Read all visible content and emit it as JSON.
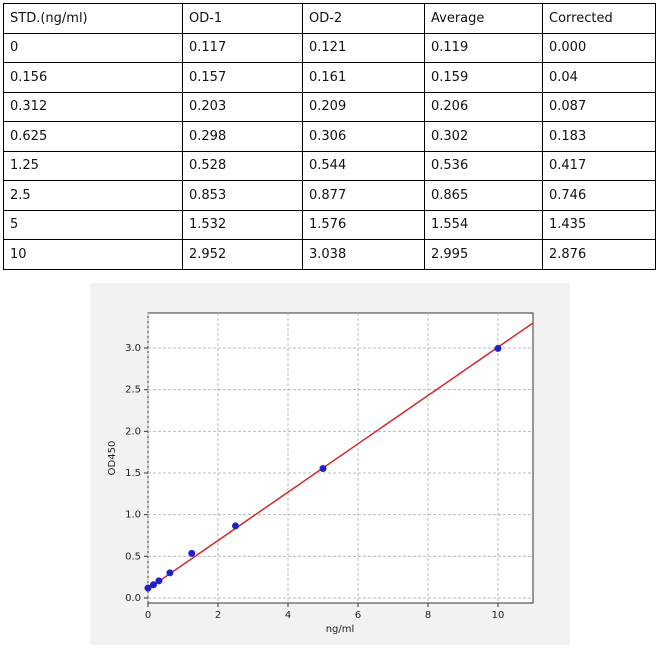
{
  "table": {
    "header": [
      "STD.(ng/ml)",
      "OD-1",
      "OD-2",
      "Average",
      "Corrected"
    ],
    "rows": [
      [
        "0",
        "0.117",
        "0.121",
        "0.119",
        "0.000"
      ],
      [
        "0.156",
        "0.157",
        "0.161",
        "0.159",
        "0.04"
      ],
      [
        "0.312",
        "0.203",
        "0.209",
        "0.206",
        "0.087"
      ],
      [
        "0.625",
        "0.298",
        "0.306",
        "0.302",
        "0.183"
      ],
      [
        "1.25",
        "0.528",
        "0.544",
        "0.536",
        "0.417"
      ],
      [
        "2.5",
        "0.853",
        "0.877",
        "0.865",
        "0.746"
      ],
      [
        "5",
        "1.532",
        "1.576",
        "1.554",
        "1.435"
      ],
      [
        "10",
        "2.952",
        "3.038",
        "2.995",
        "2.876"
      ]
    ]
  },
  "chart_data": {
    "type": "scatter",
    "x_label": "ng/ml",
    "y_label": "OD450",
    "series": [
      {
        "type": "scatter",
        "color": "#1f1fcc",
        "x": [
          0,
          0.156,
          0.312,
          0.625,
          1.25,
          2.5,
          5,
          10
        ],
        "values": [
          0.119,
          0.159,
          0.206,
          0.302,
          0.536,
          0.865,
          1.554,
          2.995
        ]
      },
      {
        "type": "line",
        "color": "#d62728",
        "x": [
          0,
          11
        ],
        "values": [
          0.11,
          3.3
        ]
      }
    ],
    "xlim": [
      0,
      11
    ],
    "ylim": [
      -0.06,
      3.42
    ],
    "xticks": [
      0,
      2,
      4,
      6,
      8,
      10
    ],
    "yticks": [
      {
        "value": 0,
        "label": "0.0"
      },
      0.5,
      {
        "value": 1,
        "label": "1.0"
      },
      1.5,
      {
        "value": 2,
        "label": "2.0"
      },
      2.5,
      {
        "value": 3,
        "label": "3.0"
      }
    ],
    "grid": true
  }
}
